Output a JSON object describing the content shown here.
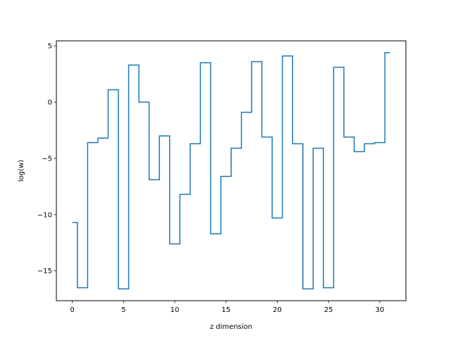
{
  "chart_data": {
    "type": "line",
    "title": "",
    "xlabel": "z dimension",
    "ylabel": "log(w)",
    "xlim": [
      -1.55,
      32.55
    ],
    "ylim": [
      -17.65,
      5.45
    ],
    "grid": false,
    "legend": "none",
    "step": "mid",
    "line_color": "#1f77b4",
    "x_ticks": [
      {
        "value": 0,
        "label": "0"
      },
      {
        "value": 5,
        "label": "5"
      },
      {
        "value": 10,
        "label": "10"
      },
      {
        "value": 15,
        "label": "15"
      },
      {
        "value": 20,
        "label": "20"
      },
      {
        "value": 25,
        "label": "25"
      },
      {
        "value": 30,
        "label": "30"
      }
    ],
    "y_ticks": [
      {
        "value": -15,
        "label": "−15"
      },
      {
        "value": -10,
        "label": "−10"
      },
      {
        "value": -5,
        "label": "−5"
      },
      {
        "value": 0,
        "label": "0"
      },
      {
        "value": 5,
        "label": "5"
      }
    ],
    "series": [
      {
        "x": [
          0,
          1,
          2,
          3,
          4,
          5,
          6,
          7,
          8,
          9,
          10,
          11,
          12,
          13,
          14,
          15,
          16,
          17,
          18,
          19,
          20,
          21,
          22,
          23,
          24,
          25,
          26,
          27,
          28,
          29,
          30,
          31
        ],
        "y": [
          -10.7,
          -16.5,
          -3.6,
          -3.2,
          1.1,
          -16.6,
          3.3,
          0.0,
          -6.9,
          -3.0,
          -12.6,
          -8.2,
          -3.7,
          3.5,
          -11.7,
          -6.6,
          -4.1,
          -0.9,
          3.6,
          -3.1,
          -10.3,
          4.1,
          -3.7,
          -16.6,
          -4.1,
          -16.5,
          3.1,
          -3.1,
          -4.4,
          -3.7,
          -3.6,
          4.4
        ]
      }
    ]
  }
}
